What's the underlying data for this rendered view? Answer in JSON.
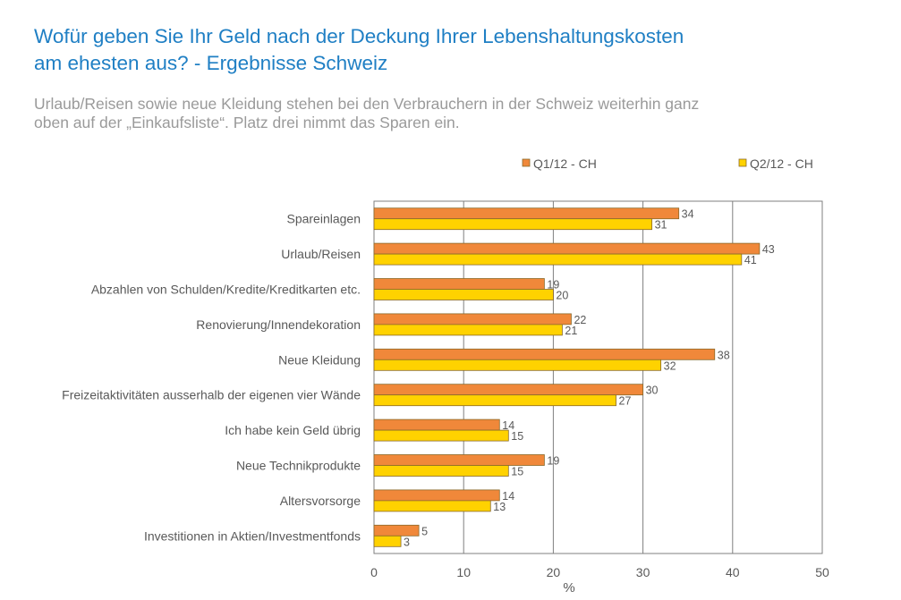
{
  "header": {
    "title_line1": "Wofür geben Sie Ihr Geld nach der Deckung Ihrer Lebenshaltungskosten",
    "title_line2": "am ehesten aus? - Ergebnisse Schweiz",
    "subtitle_line1": "Urlaub/Reisen sowie neue Kleidung stehen bei den Verbrauchern in der Schweiz weiterhin ganz",
    "subtitle_line2": "oben auf der „Einkaufsliste“. Platz drei nimmt das Sparen ein."
  },
  "chart_data": {
    "type": "bar",
    "orientation": "horizontal",
    "categories": [
      "Spareinlagen",
      "Urlaub/Reisen",
      "Abzahlen von Schulden/Kredite/Kreditkarten etc.",
      "Renovierung/Innendekoration",
      "Neue Kleidung",
      "Freizeitaktivitäten ausserhalb der eigenen vier Wände",
      "Ich habe kein Geld übrig",
      "Neue Technikprodukte",
      "Altersvorsorge",
      "Investitionen in Aktien/Investmentfonds"
    ],
    "series": [
      {
        "name": "Q1/12 - CH",
        "color": "#f0883a",
        "values": [
          34,
          43,
          19,
          22,
          38,
          30,
          14,
          19,
          14,
          5
        ]
      },
      {
        "name": "Q2/12 - CH",
        "color": "#ffd200",
        "values": [
          31,
          41,
          20,
          21,
          32,
          27,
          15,
          15,
          13,
          3
        ]
      }
    ],
    "xlabel": "%",
    "xlim": [
      0,
      50
    ],
    "xticks": [
      0,
      10,
      20,
      30,
      40,
      50
    ],
    "grid": true,
    "legend_position": "top",
    "data_labels": true
  }
}
